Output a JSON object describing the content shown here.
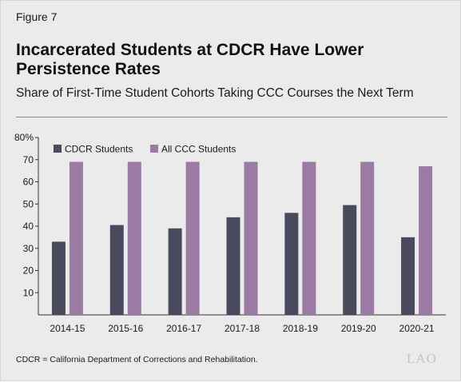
{
  "figure_label": "Figure 7",
  "title": "Incarcerated Students at CDCR Have Lower Persistence Rates",
  "subtitle": "Share of First-Time Student Cohorts Taking CCC Courses the Next Term",
  "footnote": "CDCR = California Department of Corrections and Rehabilitation.",
  "logo_text": "LAO",
  "chart_data": {
    "type": "bar",
    "categories": [
      "2014-15",
      "2015-16",
      "2016-17",
      "2017-18",
      "2018-19",
      "2019-20",
      "2020-21"
    ],
    "series": [
      {
        "name": "CDCR Students",
        "color": "#4a4a5e",
        "values": [
          33,
          40.5,
          39,
          44,
          46,
          49.5,
          35
        ]
      },
      {
        "name": "All CCC Students",
        "color": "#9b7aa3",
        "values": [
          69,
          69,
          69,
          69,
          69,
          69,
          67
        ]
      }
    ],
    "ylim": [
      0,
      80
    ],
    "yticks": [
      10,
      20,
      30,
      40,
      50,
      60,
      70,
      80
    ],
    "ytick_labels": [
      "10",
      "20",
      "30",
      "40",
      "50",
      "60",
      "70",
      "80%"
    ],
    "legend_position": "top-left",
    "grid": false,
    "title": "",
    "xlabel": "",
    "ylabel": ""
  }
}
